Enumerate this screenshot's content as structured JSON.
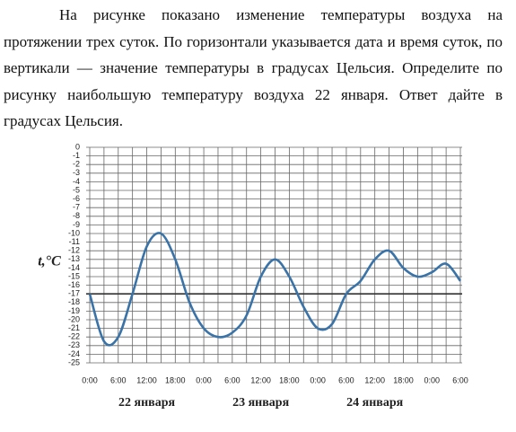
{
  "text": "На рисунке показано изменение температуры воздуха на протяжении трех суток. По горизонтали указывается дата и время суток, по вертикали — значение температуры в градусах Цельсия. Определите по рисунку наибольшую температуру воздуха 22 января. Ответ дайте в градусах Цельсия.",
  "chart_data": {
    "type": "line",
    "y_label": "t,°C",
    "color": "#3a73a8",
    "x": [
      0,
      3,
      6,
      9,
      12,
      15,
      18,
      21,
      24,
      27,
      30,
      33,
      36,
      39,
      42,
      45,
      48,
      51,
      54,
      57,
      60,
      63,
      66,
      69,
      72,
      75,
      78
    ],
    "values": [
      -17,
      -22.5,
      -22,
      -17,
      -11.5,
      -10,
      -13,
      -18,
      -21,
      -22,
      -21.5,
      -19.5,
      -15,
      -13,
      -15,
      -18.5,
      -21,
      -20.5,
      -17,
      -15.5,
      -13,
      -12,
      -14,
      -15,
      -14.5,
      -13.5,
      -15.5
    ],
    "xlim": [
      0,
      78
    ],
    "xticks": [
      {
        "value": 0,
        "label": "0:00"
      },
      {
        "value": 6,
        "label": "6:00"
      },
      {
        "value": 12,
        "label": "12:00"
      },
      {
        "value": 18,
        "label": "18:00"
      },
      {
        "value": 24,
        "label": "0:00"
      },
      {
        "value": 30,
        "label": "6:00"
      },
      {
        "value": 36,
        "label": "12:00"
      },
      {
        "value": 42,
        "label": "18:00"
      },
      {
        "value": 48,
        "label": "0:00"
      },
      {
        "value": 54,
        "label": "6:00"
      },
      {
        "value": 60,
        "label": "12:00"
      },
      {
        "value": 66,
        "label": "18:00"
      },
      {
        "value": 72,
        "label": "0:00"
      },
      {
        "value": 78,
        "label": "6:00"
      }
    ],
    "x_minor_ticks": [
      3,
      9,
      15,
      21,
      27,
      33,
      39,
      45,
      51,
      57,
      63,
      69,
      75
    ],
    "day_labels": [
      "22 января",
      "23 января",
      "24 января"
    ],
    "ylim": [
      -25,
      0
    ],
    "yticks": [
      0,
      -1,
      -2,
      -3,
      -4,
      -5,
      -6,
      -7,
      -8,
      -9,
      -10,
      -11,
      -12,
      -13,
      -14,
      -15,
      -16,
      -17,
      -18,
      -19,
      -20,
      -21,
      -22,
      -23,
      -24,
      -25
    ],
    "reference_line": -17,
    "grid": true
  }
}
